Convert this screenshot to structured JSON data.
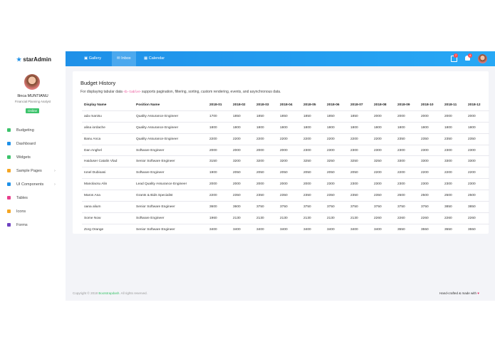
{
  "sidebar": {
    "logo": "starAdmin",
    "user_name": "Ilinca MUNTIANU",
    "user_role": "Financial Planning Analyst",
    "status": "Online",
    "menu": [
      "Budgeting",
      "Dashboard",
      "Widgets",
      "Sample Pages",
      "UI Components",
      "Tables",
      "Icons",
      "Forms"
    ]
  },
  "navbar": {
    "tabs": [
      "Gallery",
      "Inbox",
      "Calendar"
    ],
    "badges": [
      7,
      4
    ]
  },
  "card": {
    "title": "Budget History",
    "description_before": "For displaying tabular data",
    "code": "<b-table>",
    "description_after": "supports pagination, filtering, sorting, custom rendering, events, and asynchronous data."
  },
  "table": {
    "header": [
      "Display Name",
      "Position Name",
      "2018-01",
      "2018-02",
      "2018-03",
      "2018-04",
      "2018-05",
      "2018-06",
      "2018-07",
      "2018-08",
      "2018-09",
      "2018-10",
      "2018-11",
      "2018-12"
    ],
    "rows": [
      [
        "ada manisu",
        "Quality Assurance Engineer",
        1700,
        1850,
        1850,
        1850,
        1850,
        1850,
        1850,
        2000,
        2000,
        2000,
        2000,
        2000
      ],
      [
        "alina iordache",
        "Quality Assurance Engineer",
        1800,
        1800,
        1800,
        1800,
        1800,
        1800,
        1800,
        1800,
        1800,
        1800,
        1800,
        1800
      ],
      [
        "Banu Anca",
        "Quality Assurance Engineer",
        2200,
        2200,
        2200,
        2200,
        2200,
        2200,
        2200,
        2200,
        2350,
        2350,
        2350,
        2350
      ],
      [
        "Dan Anghel",
        "Software Engineer",
        2000,
        2000,
        2000,
        2000,
        2300,
        2300,
        2300,
        2300,
        2300,
        2300,
        2300,
        2300
      ],
      [
        "Haiduser Catalin Vlad",
        "Senior Software Engineer",
        3150,
        3200,
        3200,
        3200,
        3250,
        3250,
        3250,
        3250,
        3300,
        3300,
        3300,
        3300
      ],
      [
        "Ionel Dubioasi",
        "Software Engineer",
        1900,
        2050,
        2050,
        2050,
        2050,
        2050,
        2050,
        2200,
        2200,
        2200,
        2200,
        2200
      ],
      [
        "Manolacsu Alin",
        "Lead Quality Assurance Engineer",
        2000,
        2000,
        2000,
        2000,
        2000,
        2300,
        2300,
        2300,
        2300,
        2300,
        2300,
        2300
      ],
      [
        "Maros Ana",
        "Grants & Bids Specialist",
        2200,
        2350,
        2350,
        2350,
        2350,
        2350,
        2350,
        2350,
        2500,
        2500,
        2500,
        2500
      ],
      [
        "oana alium",
        "Senior Software Engineer",
        3600,
        3600,
        3750,
        3750,
        3750,
        3750,
        3750,
        3750,
        3750,
        3750,
        3850,
        3850
      ],
      [
        "Some Now",
        "Software Engineer",
        1960,
        2130,
        2130,
        2130,
        2130,
        2130,
        2130,
        2260,
        2260,
        2260,
        2260,
        2260
      ],
      [
        "Zorg Orange",
        "Senior Software Engineer",
        3400,
        3400,
        3400,
        3400,
        3400,
        3400,
        3400,
        3400,
        3550,
        3550,
        3550,
        3550
      ]
    ]
  },
  "footer": {
    "copyright_before": "Copyright © 2018",
    "brand": "Bootstrapdash.",
    "copyright_after": "All rights reserved.",
    "credit": "Hand-crafted & made with"
  }
}
